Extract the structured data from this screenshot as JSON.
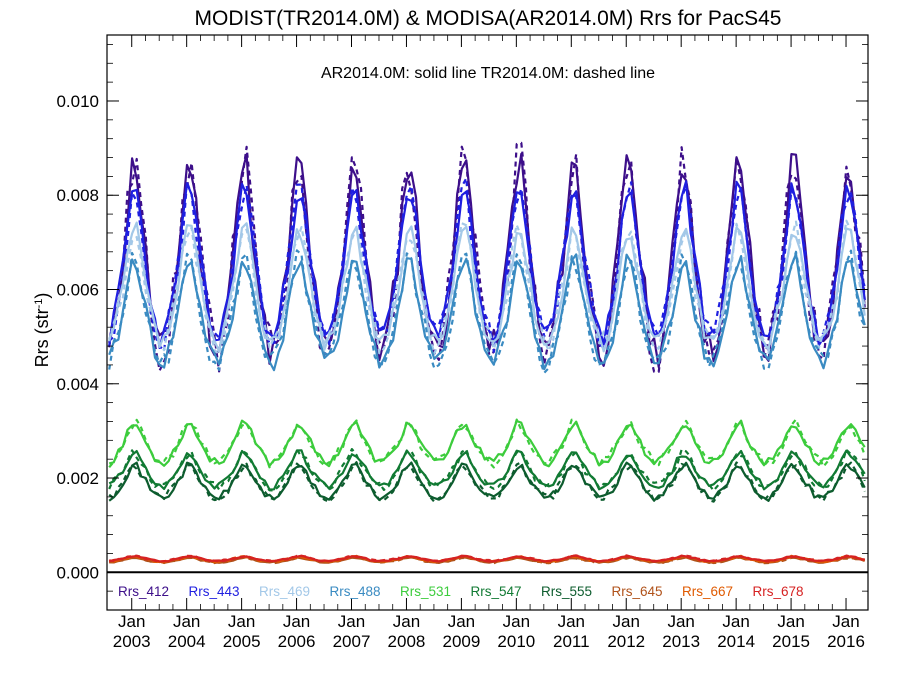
{
  "chart_data": {
    "type": "line",
    "title": "MODIST(TR2014.0M) & MODISA(AR2014.0M)  Rrs for PacS45",
    "annotation": "AR2014.0M: solid line   TR2014.0M: dashed line",
    "ylabel": "Rrs (str",
    "ylabel_sup": "-1",
    "ylabel_tail": ")",
    "ylim": [
      -0.0008,
      0.0114
    ],
    "xlim": [
      2002.55,
      2016.4
    ],
    "yticks": [
      "0.000",
      "0.002",
      "0.004",
      "0.006",
      "0.008",
      "0.010"
    ],
    "xticks": [
      {
        "month": "Jan",
        "year": "2003"
      },
      {
        "month": "Jan",
        "year": "2004"
      },
      {
        "month": "Jan",
        "year": "2005"
      },
      {
        "month": "Jan",
        "year": "2006"
      },
      {
        "month": "Jan",
        "year": "2007"
      },
      {
        "month": "Jan",
        "year": "2008"
      },
      {
        "month": "Jan",
        "year": "2009"
      },
      {
        "month": "Jan",
        "year": "2010"
      },
      {
        "month": "Jan",
        "year": "2011"
      },
      {
        "month": "Jan",
        "year": "2012"
      },
      {
        "month": "Jan",
        "year": "2013"
      },
      {
        "month": "Jan",
        "year": "2014"
      },
      {
        "month": "Jan",
        "year": "2015"
      },
      {
        "month": "Jan",
        "year": "2016"
      }
    ],
    "grid": false,
    "legend_position": "bottom inside plot",
    "zero_line": true,
    "line_styles": {
      "solid": "AR2014.0M",
      "dashed": "TR2014.0M"
    },
    "series": [
      {
        "name": "Rrs_412",
        "color": "#3d0f8a",
        "base": 0.00625,
        "amp": 0.00155,
        "jitter": 0.0008,
        "seed": 11
      },
      {
        "name": "Rrs_443",
        "color": "#1f1fe0",
        "base": 0.0062,
        "amp": 0.00125,
        "jitter": 0.0005,
        "seed": 23
      },
      {
        "name": "Rrs_469",
        "color": "#a3c8e8",
        "base": 0.0058,
        "amp": 0.00095,
        "jitter": 0.0004,
        "seed": 37
      },
      {
        "name": "Rrs_488",
        "color": "#3a8bc2",
        "base": 0.0053,
        "amp": 0.00085,
        "jitter": 0.0004,
        "seed": 41
      },
      {
        "name": "Rrs_531",
        "color": "#3ccc3c",
        "base": 0.00265,
        "amp": 0.00032,
        "jitter": 0.00018,
        "seed": 53
      },
      {
        "name": "Rrs_547",
        "color": "#117a33",
        "base": 0.0021,
        "amp": 0.00028,
        "jitter": 0.00015,
        "seed": 67
      },
      {
        "name": "Rrs_555",
        "color": "#0d5c2e",
        "base": 0.00185,
        "amp": 0.00027,
        "jitter": 0.00015,
        "seed": 71
      },
      {
        "name": "Rrs_645",
        "color": "#b0521a",
        "base": 0.00025,
        "amp": 4e-05,
        "jitter": 3e-05,
        "seed": 83
      },
      {
        "name": "Rrs_667",
        "color": "#e05a00",
        "base": 0.00027,
        "amp": 4e-05,
        "jitter": 3e-05,
        "seed": 89
      },
      {
        "name": "Rrs_678",
        "color": "#d62222",
        "base": 0.00028,
        "amp": 4e-05,
        "jitter": 3e-05,
        "seed": 97
      }
    ]
  }
}
